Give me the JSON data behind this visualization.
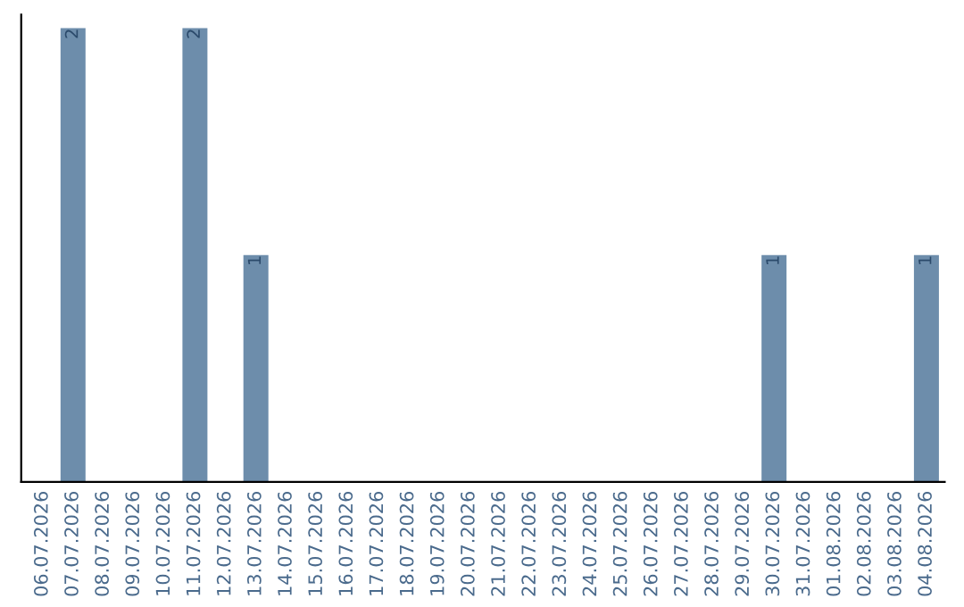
{
  "chart_data": {
    "type": "bar",
    "categories": [
      "06.07.2026",
      "07.07.2026",
      "08.07.2026",
      "09.07.2026",
      "10.07.2026",
      "11.07.2026",
      "12.07.2026",
      "13.07.2026",
      "14.07.2026",
      "15.07.2026",
      "16.07.2026",
      "17.07.2026",
      "18.07.2026",
      "19.07.2026",
      "20.07.2026",
      "21.07.2026",
      "22.07.2026",
      "23.07.2026",
      "24.07.2026",
      "25.07.2026",
      "26.07.2026",
      "27.07.2026",
      "28.07.2026",
      "29.07.2026",
      "30.07.2026",
      "31.07.2026",
      "01.08.2026",
      "02.08.2026",
      "03.08.2026",
      "04.08.2026"
    ],
    "values": [
      0,
      2,
      0,
      0,
      0,
      2,
      0,
      1,
      0,
      0,
      0,
      0,
      0,
      0,
      0,
      0,
      0,
      0,
      0,
      0,
      0,
      0,
      0,
      0,
      1,
      0,
      0,
      0,
      0,
      1
    ],
    "value_labels": [
      null,
      "2",
      null,
      null,
      null,
      "2",
      null,
      "1",
      null,
      null,
      null,
      null,
      null,
      null,
      null,
      null,
      null,
      null,
      null,
      null,
      null,
      null,
      null,
      null,
      "1",
      null,
      null,
      null,
      null,
      "1"
    ],
    "color": "#6d8dab",
    "tick_labels": "x",
    "grid": false,
    "legend": false
  }
}
